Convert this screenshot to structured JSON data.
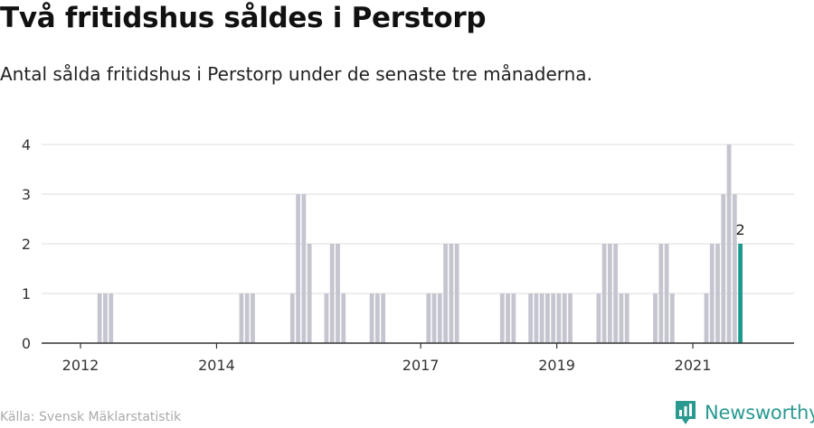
{
  "header": {
    "title": "Två fritidshus såldes i Perstorp",
    "subtitle": "Antal sålda fritidshus i Perstorp under de senaste tre månaderna."
  },
  "footer": {
    "source": "Källa: Svensk Mäklarstatistik",
    "brand": "Newsworthy"
  },
  "colors": {
    "bar": "#c5c5d0",
    "highlight": "#1a9a8e",
    "grid": "#dcdcdc",
    "axis": "#333333",
    "brand": "#2a9a91"
  },
  "icons": {
    "logo": "newsworthy-logo-icon"
  },
  "chart_data": {
    "type": "bar",
    "title": "Två fritidshus såldes i Perstorp",
    "subtitle": "Antal sålda fritidshus i Perstorp under de senaste tre månaderna.",
    "x_start": "2012-01",
    "x_end": "2021-12",
    "ylim": [
      0,
      4
    ],
    "yticks": [
      0,
      1,
      2,
      3,
      4
    ],
    "xticks": [
      {
        "label": "2012",
        "date": "2012-01"
      },
      {
        "label": "2014",
        "date": "2014-01"
      },
      {
        "label": "2017",
        "date": "2017-01"
      },
      {
        "label": "2019",
        "date": "2019-01"
      },
      {
        "label": "2021",
        "date": "2021-01"
      }
    ],
    "grid": true,
    "legend": "none",
    "bars": [
      {
        "date": "2012-04",
        "value": 1
      },
      {
        "date": "2012-05",
        "value": 1
      },
      {
        "date": "2012-06",
        "value": 1
      },
      {
        "date": "2014-05",
        "value": 1
      },
      {
        "date": "2014-06",
        "value": 1
      },
      {
        "date": "2014-07",
        "value": 1
      },
      {
        "date": "2015-02",
        "value": 1
      },
      {
        "date": "2015-03",
        "value": 3
      },
      {
        "date": "2015-04",
        "value": 3
      },
      {
        "date": "2015-05",
        "value": 2
      },
      {
        "date": "2015-08",
        "value": 1
      },
      {
        "date": "2015-09",
        "value": 2
      },
      {
        "date": "2015-10",
        "value": 2
      },
      {
        "date": "2015-11",
        "value": 1
      },
      {
        "date": "2016-04",
        "value": 1
      },
      {
        "date": "2016-05",
        "value": 1
      },
      {
        "date": "2016-06",
        "value": 1
      },
      {
        "date": "2017-02",
        "value": 1
      },
      {
        "date": "2017-03",
        "value": 1
      },
      {
        "date": "2017-04",
        "value": 1
      },
      {
        "date": "2017-05",
        "value": 2
      },
      {
        "date": "2017-06",
        "value": 2
      },
      {
        "date": "2017-07",
        "value": 2
      },
      {
        "date": "2018-03",
        "value": 1
      },
      {
        "date": "2018-04",
        "value": 1
      },
      {
        "date": "2018-05",
        "value": 1
      },
      {
        "date": "2018-08",
        "value": 1
      },
      {
        "date": "2018-09",
        "value": 1
      },
      {
        "date": "2018-10",
        "value": 1
      },
      {
        "date": "2018-11",
        "value": 1
      },
      {
        "date": "2018-12",
        "value": 1
      },
      {
        "date": "2019-01",
        "value": 1
      },
      {
        "date": "2019-02",
        "value": 1
      },
      {
        "date": "2019-03",
        "value": 1
      },
      {
        "date": "2019-08",
        "value": 1
      },
      {
        "date": "2019-09",
        "value": 2
      },
      {
        "date": "2019-10",
        "value": 2
      },
      {
        "date": "2019-11",
        "value": 2
      },
      {
        "date": "2019-12",
        "value": 1
      },
      {
        "date": "2020-01",
        "value": 1
      },
      {
        "date": "2020-06",
        "value": 1
      },
      {
        "date": "2020-07",
        "value": 2
      },
      {
        "date": "2020-08",
        "value": 2
      },
      {
        "date": "2020-09",
        "value": 1
      },
      {
        "date": "2021-03",
        "value": 1
      },
      {
        "date": "2021-04",
        "value": 2
      },
      {
        "date": "2021-05",
        "value": 2
      },
      {
        "date": "2021-06",
        "value": 3
      },
      {
        "date": "2021-07",
        "value": 4
      },
      {
        "date": "2021-08",
        "value": 3
      },
      {
        "date": "2021-09",
        "value": 2,
        "highlight": true,
        "label": "2"
      }
    ]
  }
}
